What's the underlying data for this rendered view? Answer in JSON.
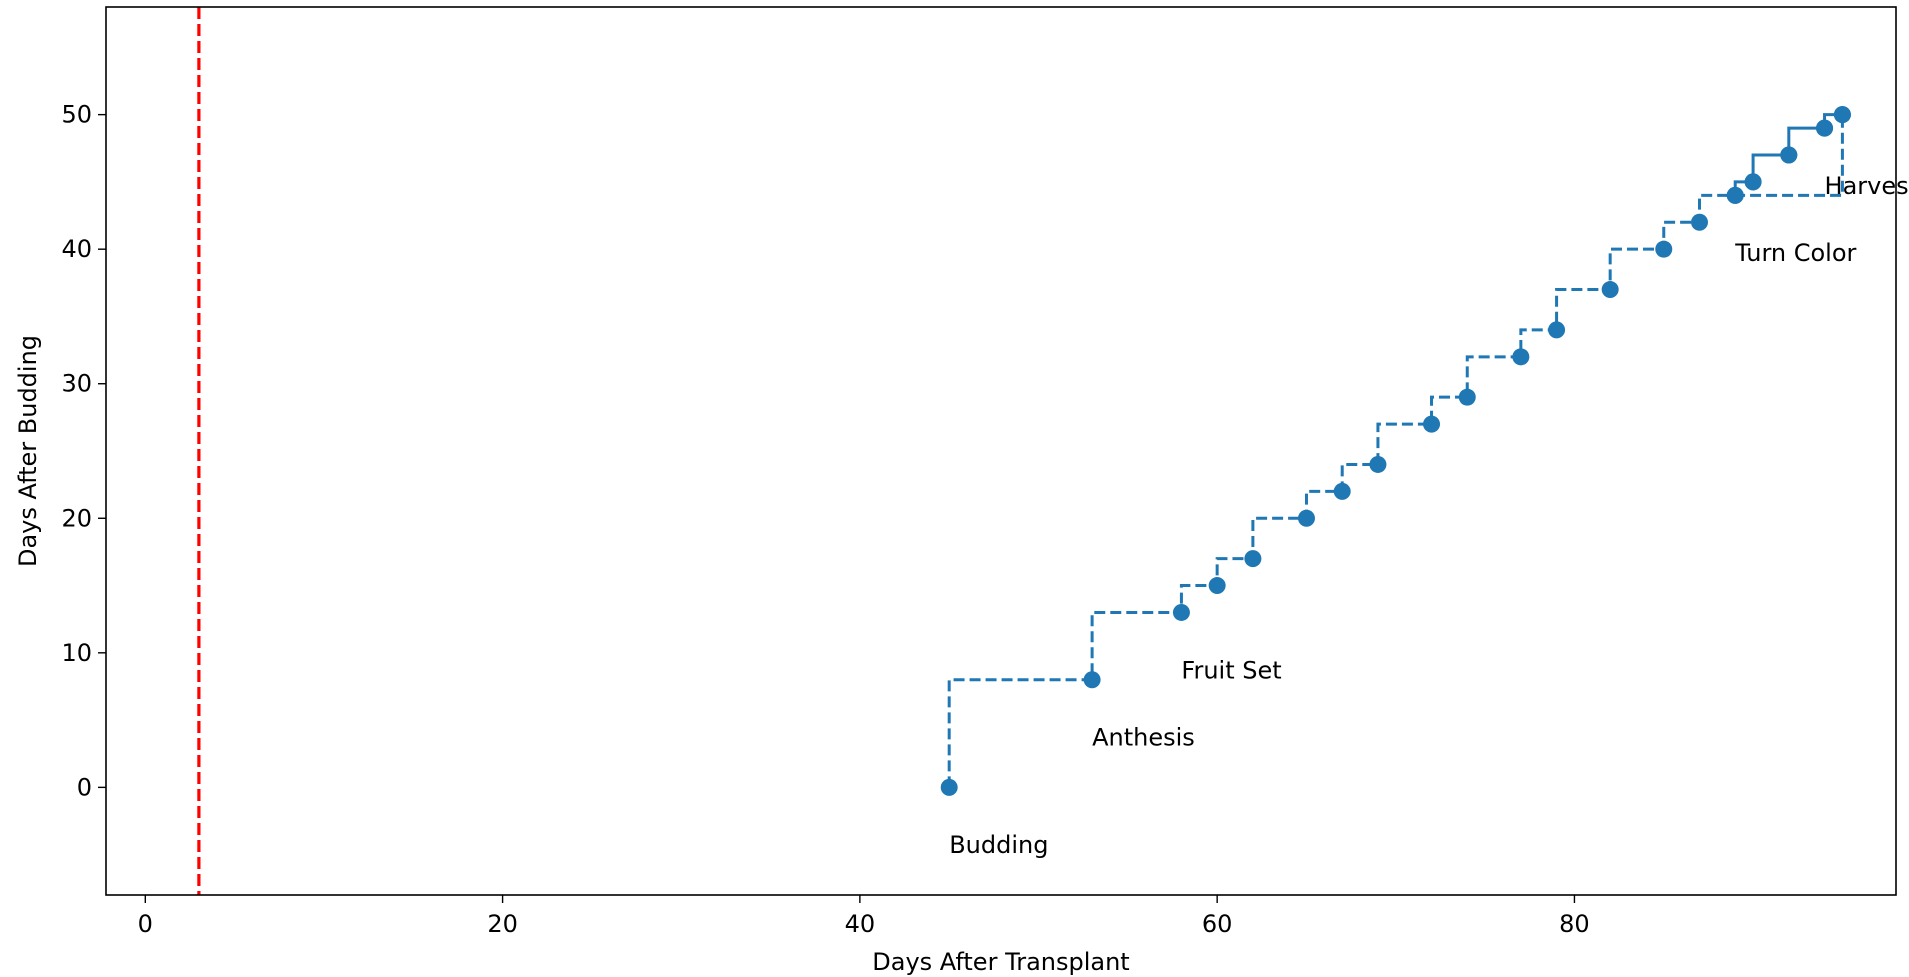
{
  "chart_data": {
    "type": "line",
    "title": "",
    "xlabel": "Days After Transplant",
    "ylabel": "Days After Budding",
    "xlim": [
      -2.2,
      98.0
    ],
    "ylim": [
      -8,
      58
    ],
    "xticks": [
      0,
      20,
      40,
      60,
      80
    ],
    "yticks": [
      0,
      10,
      20,
      30,
      40,
      50
    ],
    "grid": false,
    "legend": "none",
    "series": [
      {
        "style": "dashed step (post) with circle markers",
        "color": "#1f77b4",
        "x": [
          45,
          53,
          58,
          60,
          62,
          65,
          67,
          69,
          72,
          74,
          77,
          79,
          82,
          85,
          87,
          89,
          90,
          92,
          94,
          95,
          89,
          90,
          92,
          94,
          95
        ],
        "y": [
          0,
          8,
          13,
          15,
          17,
          20,
          22,
          24,
          27,
          29,
          32,
          34,
          37,
          40,
          42,
          44,
          45,
          47,
          49,
          50,
          44,
          45,
          47,
          49,
          50
        ]
      }
    ],
    "vline": {
      "x": 3,
      "color": "#ff0000",
      "style": "dashed"
    },
    "annotations": [
      {
        "text": "Budding",
        "x": 45,
        "y": -4.3
      },
      {
        "text": "Anthesis",
        "x": 53,
        "y": 3.7
      },
      {
        "text": "Fruit Set",
        "x": 58,
        "y": 8.7
      },
      {
        "text": "Turn Color",
        "x": 89,
        "y": 39.7
      },
      {
        "text": "Harvest",
        "x": 94,
        "y": 44.7
      }
    ]
  }
}
